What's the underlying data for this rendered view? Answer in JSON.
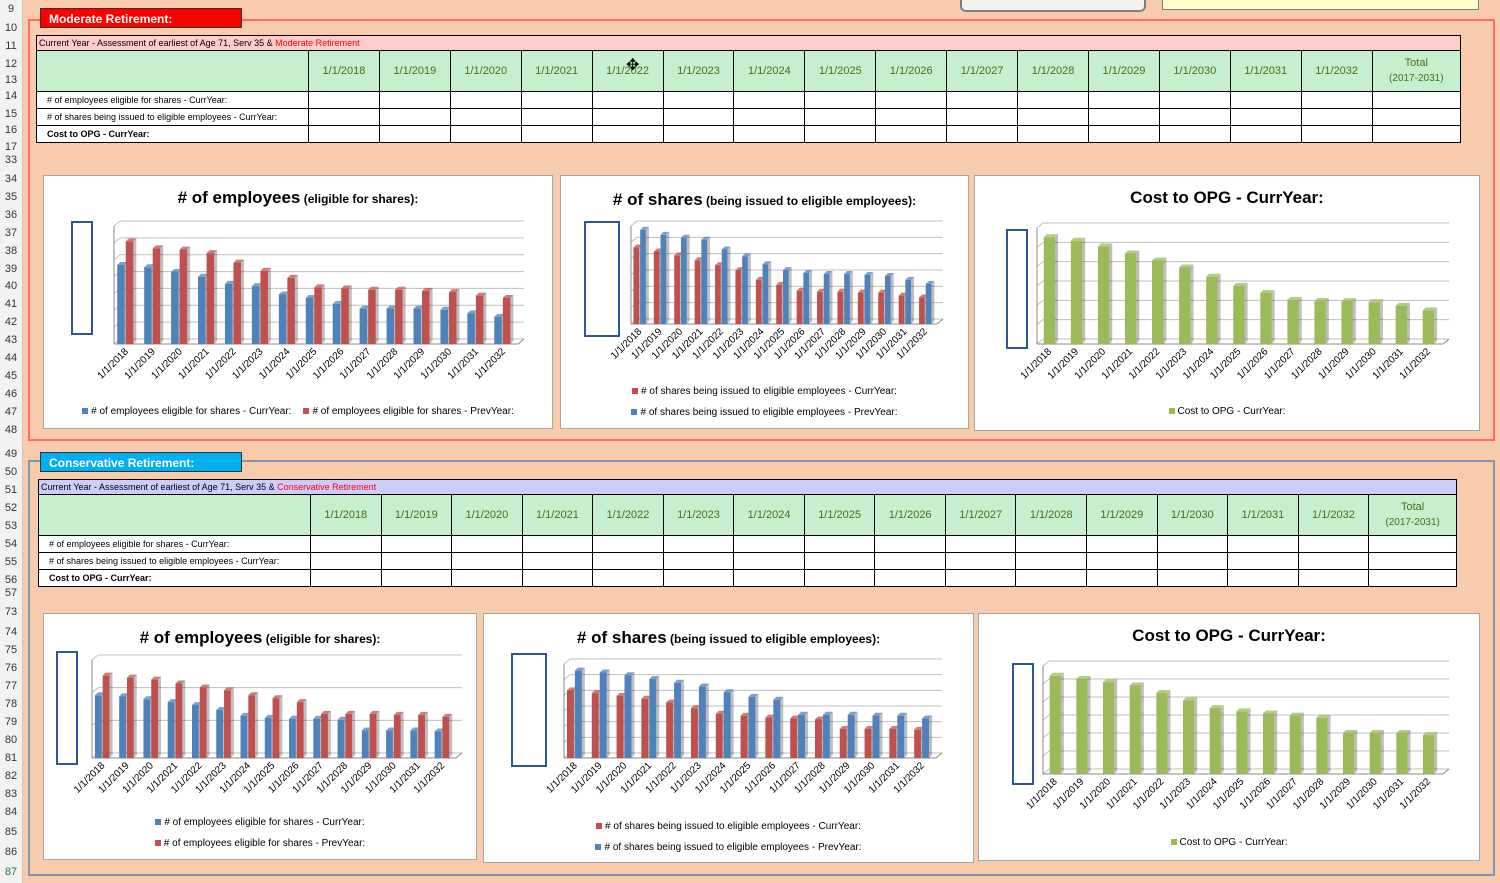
{
  "row_numbers_top": [
    "9",
    "10",
    "11",
    "12",
    "13",
    "14",
    "15",
    "16",
    "17",
    "33",
    "34",
    "35",
    "36",
    "37",
    "38",
    "39",
    "40",
    "41",
    "42",
    "43",
    "44",
    "45",
    "46",
    "47",
    "48"
  ],
  "row_numbers_bottom": [
    "49",
    "50",
    "51",
    "52",
    "53",
    "54",
    "55",
    "56",
    "57",
    "73",
    "74",
    "75",
    "76",
    "77",
    "78",
    "79",
    "80",
    "81",
    "82",
    "83",
    "84",
    "85",
    "86",
    "87"
  ],
  "moderate": {
    "badge": "Moderate Retirement:",
    "caption_prefix": "Current Year - Assessment of earliest of Age 71, Serv 35 & ",
    "caption_highlight": "Moderate Retirement",
    "years": [
      "1/1/2018",
      "1/1/2019",
      "1/1/2020",
      "1/1/2021",
      "1/1/2022",
      "1/1/2023",
      "1/1/2024",
      "1/1/2025",
      "1/1/2026",
      "1/1/2027",
      "1/1/2028",
      "1/1/2029",
      "1/1/2030",
      "1/1/2031",
      "1/1/2032"
    ],
    "total_header_line1": "Total",
    "total_header_line2": "(2017-2031)",
    "rows": [
      {
        "label": "# of employees eligible for shares - CurrYear:",
        "bold": false
      },
      {
        "label": "# of shares being issued to eligible employees - CurrYear:",
        "bold": false
      },
      {
        "label": "Cost to OPG - CurrYear:",
        "bold": true
      }
    ],
    "charts": {
      "employees": {
        "title_big": "# of employees",
        "title_small": "(eligible for shares):",
        "legend": [
          "# of employees eligible for shares - CurrYear:",
          "# of employees eligible for shares - PrevYear:"
        ]
      },
      "shares": {
        "title_big": "# of shares",
        "title_small": "(being issued to eligible employees):",
        "legend": [
          "# of shares being issued to eligible employees - CurrYear:",
          "# of shares being issued to eligible employees - PrevYear:"
        ]
      },
      "cost": {
        "title": "Cost to OPG - CurrYear:",
        "legend": [
          "Cost to OPG - CurrYear:"
        ]
      }
    }
  },
  "conservative": {
    "badge": "Conservative Retirement:",
    "caption_prefix": "Current Year - Assessment of earliest of Age 71, Serv 35 & ",
    "caption_highlight": "Conservative Retirement",
    "total_header_line1": "Total",
    "total_header_line2": "(2017-2031)",
    "rows": [
      {
        "label": "# of employees eligible for shares - CurrYear:",
        "bold": false
      },
      {
        "label": "# of shares being issued to eligible employees - CurrYear:",
        "bold": false
      },
      {
        "label": "Cost to OPG - CurrYear:",
        "bold": true
      }
    ],
    "charts": {
      "employees": {
        "title_big": "# of employees",
        "title_small": "(eligible for shares):",
        "legend": [
          "# of employees eligible for shares - CurrYear:",
          "# of employees eligible for shares - PrevYear:"
        ]
      },
      "shares": {
        "title_big": "# of shares",
        "title_small": "(being issued to eligible employees):",
        "legend": [
          "# of shares being issued to eligible employees - CurrYear:",
          "# of shares being issued to eligible employees - PrevYear:"
        ]
      },
      "cost": {
        "title": "Cost to OPG - CurrYear:",
        "legend": [
          "Cost to OPG - CurrYear:"
        ]
      }
    }
  },
  "colors": {
    "red": "#c0504d",
    "blue": "#4f81bd",
    "green": "#9bbb59",
    "header_green": "#c6efce",
    "moderate_red": "#ff0000",
    "conservative_blue": "#00b0f0"
  },
  "chart_data": [
    {
      "type": "bar",
      "id": "mod-employees",
      "categories": [
        "1/1/2018",
        "1/1/2019",
        "1/1/2020",
        "1/1/2021",
        "1/1/2022",
        "1/1/2023",
        "1/1/2024",
        "1/1/2025",
        "1/1/2026",
        "1/1/2027",
        "1/1/2028",
        "1/1/2029",
        "1/1/2030",
        "1/1/2031",
        "1/1/2032"
      ],
      "series": [
        {
          "name": "# of employees eligible for shares - CurrYear:",
          "values": [
            0.67,
            0.65,
            0.61,
            0.57,
            0.51,
            0.49,
            0.42,
            0.39,
            0.34,
            0.3,
            0.3,
            0.3,
            0.29,
            0.26,
            0.23
          ]
        },
        {
          "name": "# of employees eligible for shares - PrevYear:",
          "values": [
            0.87,
            0.81,
            0.8,
            0.77,
            0.69,
            0.62,
            0.56,
            0.48,
            0.47,
            0.46,
            0.46,
            0.45,
            0.44,
            0.41,
            0.39
          ]
        }
      ]
    },
    {
      "type": "bar",
      "id": "mod-shares",
      "categories": [
        "1/1/2018",
        "1/1/2019",
        "1/1/2020",
        "1/1/2021",
        "1/1/2022",
        "1/1/2023",
        "1/1/2024",
        "1/1/2025",
        "1/1/2026",
        "1/1/2027",
        "1/1/2028",
        "1/1/2029",
        "1/1/2030",
        "1/1/2031",
        "1/1/2032"
      ],
      "series": [
        {
          "name": "# of shares being issued to eligible employees - CurrYear:",
          "values": [
            0.78,
            0.74,
            0.7,
            0.65,
            0.6,
            0.55,
            0.45,
            0.4,
            0.34,
            0.33,
            0.33,
            0.32,
            0.32,
            0.29,
            0.27
          ]
        },
        {
          "name": "# of shares being issued to eligible employees - PrevYear:",
          "values": [
            0.96,
            0.91,
            0.88,
            0.86,
            0.76,
            0.69,
            0.61,
            0.55,
            0.52,
            0.51,
            0.51,
            0.5,
            0.49,
            0.45,
            0.41
          ]
        }
      ]
    },
    {
      "type": "bar",
      "id": "mod-cost",
      "categories": [
        "1/1/2018",
        "1/1/2019",
        "1/1/2020",
        "1/1/2021",
        "1/1/2022",
        "1/1/2023",
        "1/1/2024",
        "1/1/2025",
        "1/1/2026",
        "1/1/2027",
        "1/1/2028",
        "1/1/2029",
        "1/1/2030",
        "1/1/2031",
        "1/1/2032"
      ],
      "series": [
        {
          "name": "Cost to OPG - CurrYear:",
          "values": [
            0.92,
            0.89,
            0.84,
            0.78,
            0.72,
            0.66,
            0.58,
            0.5,
            0.44,
            0.38,
            0.37,
            0.37,
            0.36,
            0.33,
            0.29
          ]
        }
      ]
    },
    {
      "type": "bar",
      "id": "con-employees",
      "categories": [
        "1/1/2018",
        "1/1/2019",
        "1/1/2020",
        "1/1/2021",
        "1/1/2022",
        "1/1/2023",
        "1/1/2024",
        "1/1/2025",
        "1/1/2026",
        "1/1/2027",
        "1/1/2028",
        "1/1/2029",
        "1/1/2030",
        "1/1/2031",
        "1/1/2032"
      ],
      "series": [
        {
          "name": "# of employees eligible for shares - CurrYear:",
          "values": [
            0.64,
            0.63,
            0.6,
            0.57,
            0.54,
            0.49,
            0.43,
            0.41,
            0.4,
            0.4,
            0.39,
            0.28,
            0.28,
            0.28,
            0.27
          ]
        },
        {
          "name": "# of employees eligible for shares - PrevYear:",
          "values": [
            0.84,
            0.82,
            0.8,
            0.76,
            0.72,
            0.69,
            0.64,
            0.61,
            0.57,
            0.45,
            0.45,
            0.45,
            0.44,
            0.44,
            0.42
          ]
        }
      ]
    },
    {
      "type": "bar",
      "id": "con-shares",
      "categories": [
        "1/1/2018",
        "1/1/2019",
        "1/1/2020",
        "1/1/2021",
        "1/1/2022",
        "1/1/2023",
        "1/1/2024",
        "1/1/2025",
        "1/1/2026",
        "1/1/2027",
        "1/1/2028",
        "1/1/2029",
        "1/1/2030",
        "1/1/2031",
        "1/1/2032"
      ],
      "series": [
        {
          "name": "# of shares being issued to eligible employees - CurrYear:",
          "values": [
            0.72,
            0.69,
            0.66,
            0.63,
            0.59,
            0.53,
            0.47,
            0.45,
            0.43,
            0.42,
            0.41,
            0.31,
            0.31,
            0.31,
            0.3
          ]
        },
        {
          "name": "# of shares being issued to eligible employees - PrevYear:",
          "values": [
            0.93,
            0.91,
            0.88,
            0.84,
            0.8,
            0.76,
            0.7,
            0.65,
            0.62,
            0.46,
            0.46,
            0.46,
            0.45,
            0.45,
            0.42
          ]
        }
      ]
    },
    {
      "type": "bar",
      "id": "con-cost",
      "categories": [
        "1/1/2018",
        "1/1/2019",
        "1/1/2020",
        "1/1/2021",
        "1/1/2022",
        "1/1/2023",
        "1/1/2024",
        "1/1/2025",
        "1/1/2026",
        "1/1/2027",
        "1/1/2028",
        "1/1/2029",
        "1/1/2030",
        "1/1/2031",
        "1/1/2032"
      ],
      "series": [
        {
          "name": "Cost to OPG - CurrYear:",
          "values": [
            0.91,
            0.88,
            0.85,
            0.82,
            0.75,
            0.68,
            0.61,
            0.58,
            0.56,
            0.54,
            0.52,
            0.38,
            0.38,
            0.38,
            0.36
          ]
        }
      ]
    }
  ]
}
